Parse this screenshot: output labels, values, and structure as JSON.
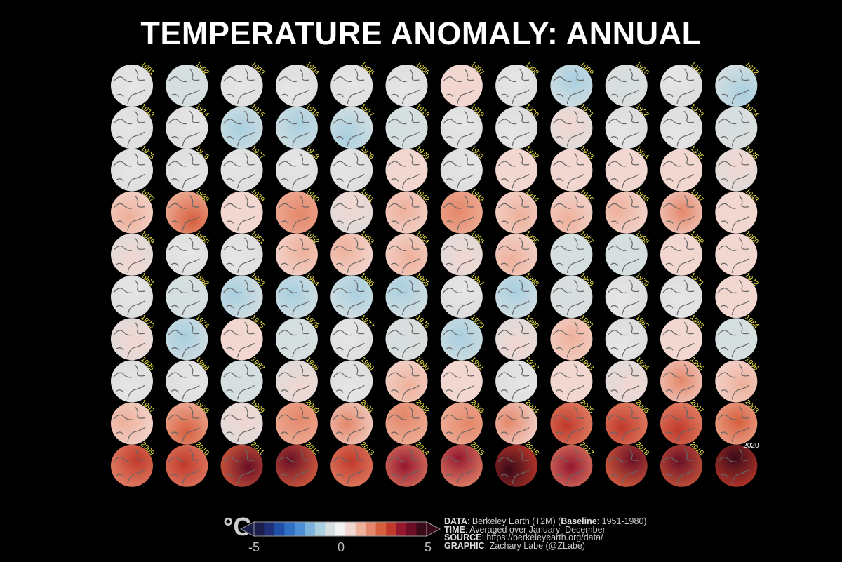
{
  "title": "TEMPERATURE ANOMALY: ANNUAL",
  "chart_data": {
    "type": "heatmap",
    "title": "TEMPERATURE ANOMALY: ANNUAL",
    "layout": "small multiples of polar maps, 12 columns x 10 rows",
    "years": [
      1901,
      1902,
      1903,
      1904,
      1905,
      1906,
      1907,
      1908,
      1909,
      1910,
      1911,
      1912,
      1913,
      1914,
      1915,
      1916,
      1917,
      1918,
      1919,
      1920,
      1921,
      1922,
      1923,
      1924,
      1925,
      1926,
      1927,
      1928,
      1929,
      1930,
      1931,
      1932,
      1933,
      1934,
      1935,
      1936,
      1937,
      1938,
      1939,
      1940,
      1941,
      1942,
      1943,
      1944,
      1945,
      1946,
      1947,
      1948,
      1949,
      1950,
      1951,
      1952,
      1953,
      1954,
      1955,
      1956,
      1957,
      1958,
      1959,
      1960,
      1961,
      1962,
      1963,
      1964,
      1965,
      1966,
      1967,
      1968,
      1969,
      1970,
      1971,
      1972,
      1973,
      1974,
      1975,
      1976,
      1977,
      1978,
      1979,
      1980,
      1981,
      1982,
      1983,
      1984,
      1985,
      1986,
      1987,
      1988,
      1989,
      1990,
      1991,
      1992,
      1993,
      1994,
      1995,
      1996,
      1997,
      1998,
      1999,
      2000,
      2001,
      2002,
      2003,
      2004,
      2005,
      2006,
      2007,
      2008,
      2009,
      2010,
      2011,
      2012,
      2013,
      2014,
      2015,
      2016,
      2017,
      2018,
      2019,
      2020
    ],
    "approx_mean_anomaly_c": [
      0.1,
      -0.3,
      0,
      0,
      -0.1,
      0.1,
      0.3,
      -0.1,
      -0.4,
      -0.2,
      0,
      -0.5,
      0,
      0,
      -0.4,
      -0.5,
      -0.6,
      -0.3,
      0,
      -0.1,
      0.2,
      0.1,
      0,
      -0.2,
      0,
      0.1,
      0.1,
      0.1,
      0,
      0.3,
      0.1,
      0.3,
      0.3,
      0.3,
      0.3,
      0.2,
      0.6,
      1.0,
      0.3,
      0.9,
      0.2,
      0.5,
      0.8,
      0.6,
      0.4,
      0.5,
      0.7,
      0.3,
      0.2,
      0.1,
      0,
      0.4,
      0.5,
      0.6,
      0.2,
      0.4,
      -0.3,
      -0.3,
      0.3,
      0.3,
      0.1,
      -0.3,
      -0.6,
      -0.4,
      -0.4,
      -0.5,
      0.1,
      -0.5,
      -0.2,
      -0.1,
      0.1,
      0.3,
      0.2,
      -0.5,
      0.3,
      -0.3,
      0.1,
      -0.2,
      -0.6,
      0.2,
      0.6,
      0.1,
      0.3,
      -0.3,
      0,
      0.1,
      -0.3,
      0.2,
      0.1,
      0.4,
      0.3,
      -0.1,
      0.3,
      0.2,
      0.7,
      0.4,
      0.4,
      1.0,
      0.2,
      0.8,
      0.7,
      0.9,
      0.9,
      0.7,
      1.2,
      1.3,
      1.4,
      1.1,
      1.2,
      1.2,
      1.8,
      1.8,
      1.2,
      1.5,
      1.5,
      2.2,
      1.6,
      1.8,
      1.9,
      2.2
    ],
    "colorbar": {
      "unit": "°C",
      "range": [
        -5,
        5
      ],
      "ticks": [
        "-5",
        "0",
        "5"
      ],
      "extend": "both",
      "colors": [
        "#1b1d4a",
        "#1f2f78",
        "#1f4fa6",
        "#2f6fc4",
        "#4c8fd4",
        "#7cb2dc",
        "#a9cfe0",
        "#d6dfe0",
        "#f2f2f2",
        "#f2d6d0",
        "#eeb09a",
        "#e4876a",
        "#d65f3e",
        "#c0392b",
        "#96182f",
        "#6a0f25",
        "#3a0a18"
      ]
    }
  },
  "credits": {
    "data_label": "DATA",
    "data_value": ": Berkeley Earth (T2M) (",
    "baseline_label": "Baseline",
    "baseline_value": ": 1951-1980)",
    "time_label": "TIME",
    "time_value": ": Averaged over January–December",
    "source_label": "SOURCE",
    "source_value": ": https://berkeleyearth.org/data/",
    "graphic_label": "GRAPHIC",
    "graphic_value": ": Zachary Labe (@ZLabe)"
  },
  "colors": {
    "background": "#000000",
    "year_label": "#f2e84a",
    "last_year_label": "#ffffff"
  }
}
